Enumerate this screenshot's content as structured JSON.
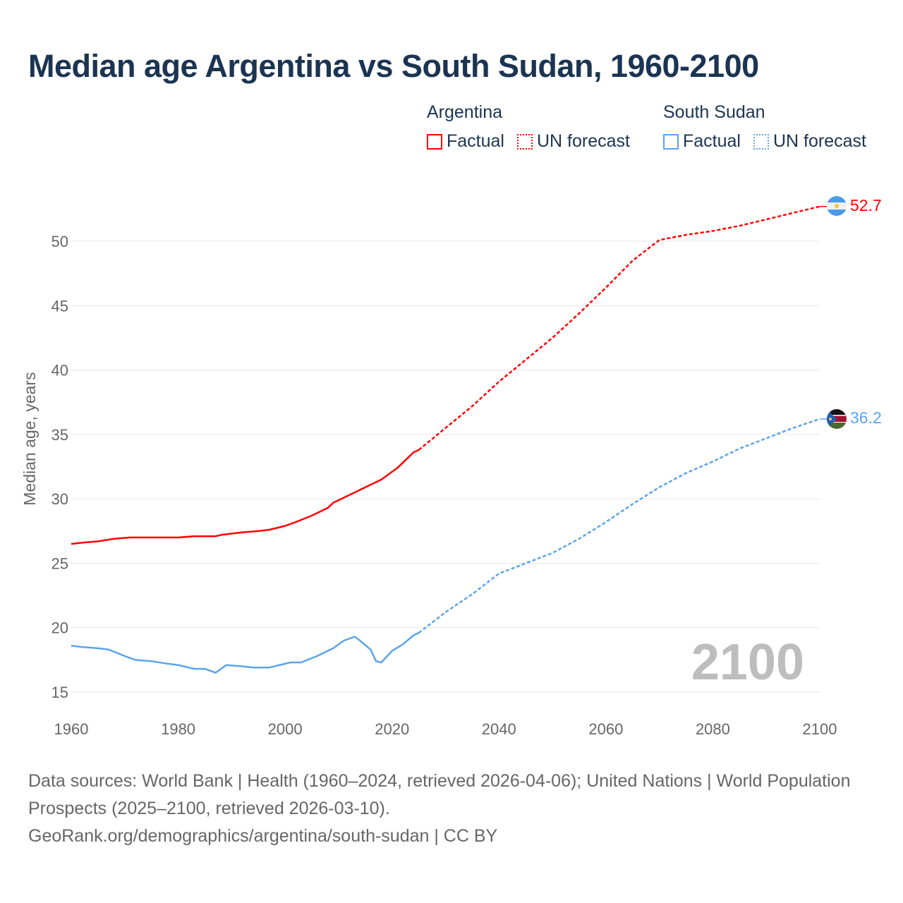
{
  "chart_data": {
    "type": "line",
    "title": "Median age Argentina vs South Sudan, 1960-2100",
    "xlabel": "",
    "ylabel": "Median age, years",
    "xlim": [
      1960,
      2100
    ],
    "ylim": [
      15,
      53
    ],
    "x_ticks": [
      "1960",
      "1980",
      "2000",
      "2020",
      "2040",
      "2060",
      "2080",
      "2100"
    ],
    "y_ticks": [
      "15",
      "20",
      "25",
      "30",
      "35",
      "40",
      "45",
      "50"
    ],
    "grid": true,
    "year_watermark": "2100",
    "legend": {
      "placement": "top-right",
      "groups": [
        {
          "name": "Argentina",
          "factual": "Factual",
          "forecast": "UN forecast"
        },
        {
          "name": "South Sudan",
          "factual": "Factual",
          "forecast": "UN forecast"
        }
      ]
    },
    "series": [
      {
        "name": "Argentina",
        "color": "#ff0000",
        "end_label": "52.7",
        "factual": [
          [
            1960,
            26.5
          ],
          [
            1962,
            26.6
          ],
          [
            1965,
            26.7
          ],
          [
            1968,
            26.9
          ],
          [
            1971,
            27.0
          ],
          [
            1980,
            27.0
          ],
          [
            1983,
            27.1
          ],
          [
            1987,
            27.1
          ],
          [
            1988,
            27.2
          ],
          [
            1990,
            27.3
          ],
          [
            1992,
            27.4
          ],
          [
            1995,
            27.5
          ],
          [
            1997,
            27.6
          ],
          [
            2000,
            27.9
          ],
          [
            2002,
            28.2
          ],
          [
            2005,
            28.7
          ],
          [
            2008,
            29.3
          ],
          [
            2009,
            29.7
          ],
          [
            2012,
            30.3
          ],
          [
            2015,
            30.9
          ],
          [
            2018,
            31.5
          ],
          [
            2021,
            32.4
          ],
          [
            2023,
            33.2
          ],
          [
            2024,
            33.6
          ],
          [
            2025,
            33.8
          ]
        ],
        "forecast": [
          [
            2025,
            33.8
          ],
          [
            2030,
            35.5
          ],
          [
            2035,
            37.2
          ],
          [
            2040,
            39.1
          ],
          [
            2045,
            40.8
          ],
          [
            2050,
            42.5
          ],
          [
            2055,
            44.4
          ],
          [
            2060,
            46.4
          ],
          [
            2065,
            48.5
          ],
          [
            2070,
            50.1
          ],
          [
            2075,
            50.5
          ],
          [
            2080,
            50.8
          ],
          [
            2085,
            51.2
          ],
          [
            2090,
            51.7
          ],
          [
            2095,
            52.2
          ],
          [
            2100,
            52.7
          ]
        ]
      },
      {
        "name": "South Sudan",
        "color": "#5ba4ea",
        "end_label": "36.2",
        "factual": [
          [
            1960,
            18.6
          ],
          [
            1962,
            18.5
          ],
          [
            1965,
            18.4
          ],
          [
            1967,
            18.3
          ],
          [
            1970,
            17.8
          ],
          [
            1972,
            17.5
          ],
          [
            1975,
            17.4
          ],
          [
            1978,
            17.2
          ],
          [
            1980,
            17.1
          ],
          [
            1983,
            16.8
          ],
          [
            1985,
            16.8
          ],
          [
            1987,
            16.5
          ],
          [
            1989,
            17.1
          ],
          [
            1992,
            17.0
          ],
          [
            1994,
            16.9
          ],
          [
            1997,
            16.9
          ],
          [
            2001,
            17.3
          ],
          [
            2003,
            17.3
          ],
          [
            2006,
            17.8
          ],
          [
            2009,
            18.4
          ],
          [
            2011,
            19.0
          ],
          [
            2013,
            19.3
          ],
          [
            2014,
            19.0
          ],
          [
            2016,
            18.3
          ],
          [
            2017,
            17.4
          ],
          [
            2018,
            17.3
          ],
          [
            2020,
            18.2
          ],
          [
            2022,
            18.7
          ],
          [
            2024,
            19.4
          ],
          [
            2025,
            19.6
          ]
        ],
        "forecast": [
          [
            2025,
            19.6
          ],
          [
            2030,
            21.2
          ],
          [
            2035,
            22.6
          ],
          [
            2040,
            24.2
          ],
          [
            2045,
            25.0
          ],
          [
            2050,
            25.8
          ],
          [
            2055,
            26.9
          ],
          [
            2060,
            28.2
          ],
          [
            2065,
            29.6
          ],
          [
            2070,
            30.9
          ],
          [
            2075,
            32.0
          ],
          [
            2080,
            32.9
          ],
          [
            2085,
            33.9
          ],
          [
            2090,
            34.7
          ],
          [
            2095,
            35.5
          ],
          [
            2100,
            36.2
          ]
        ]
      }
    ]
  },
  "footer": {
    "sources": "Data sources: World Bank | Health (1960–2024, retrieved 2026-04-06); United Nations | World Population Prospects (2025–2100, retrieved 2026-03-10).",
    "link": "GeoRank.org/demographics/argentina/south-sudan | CC BY"
  }
}
